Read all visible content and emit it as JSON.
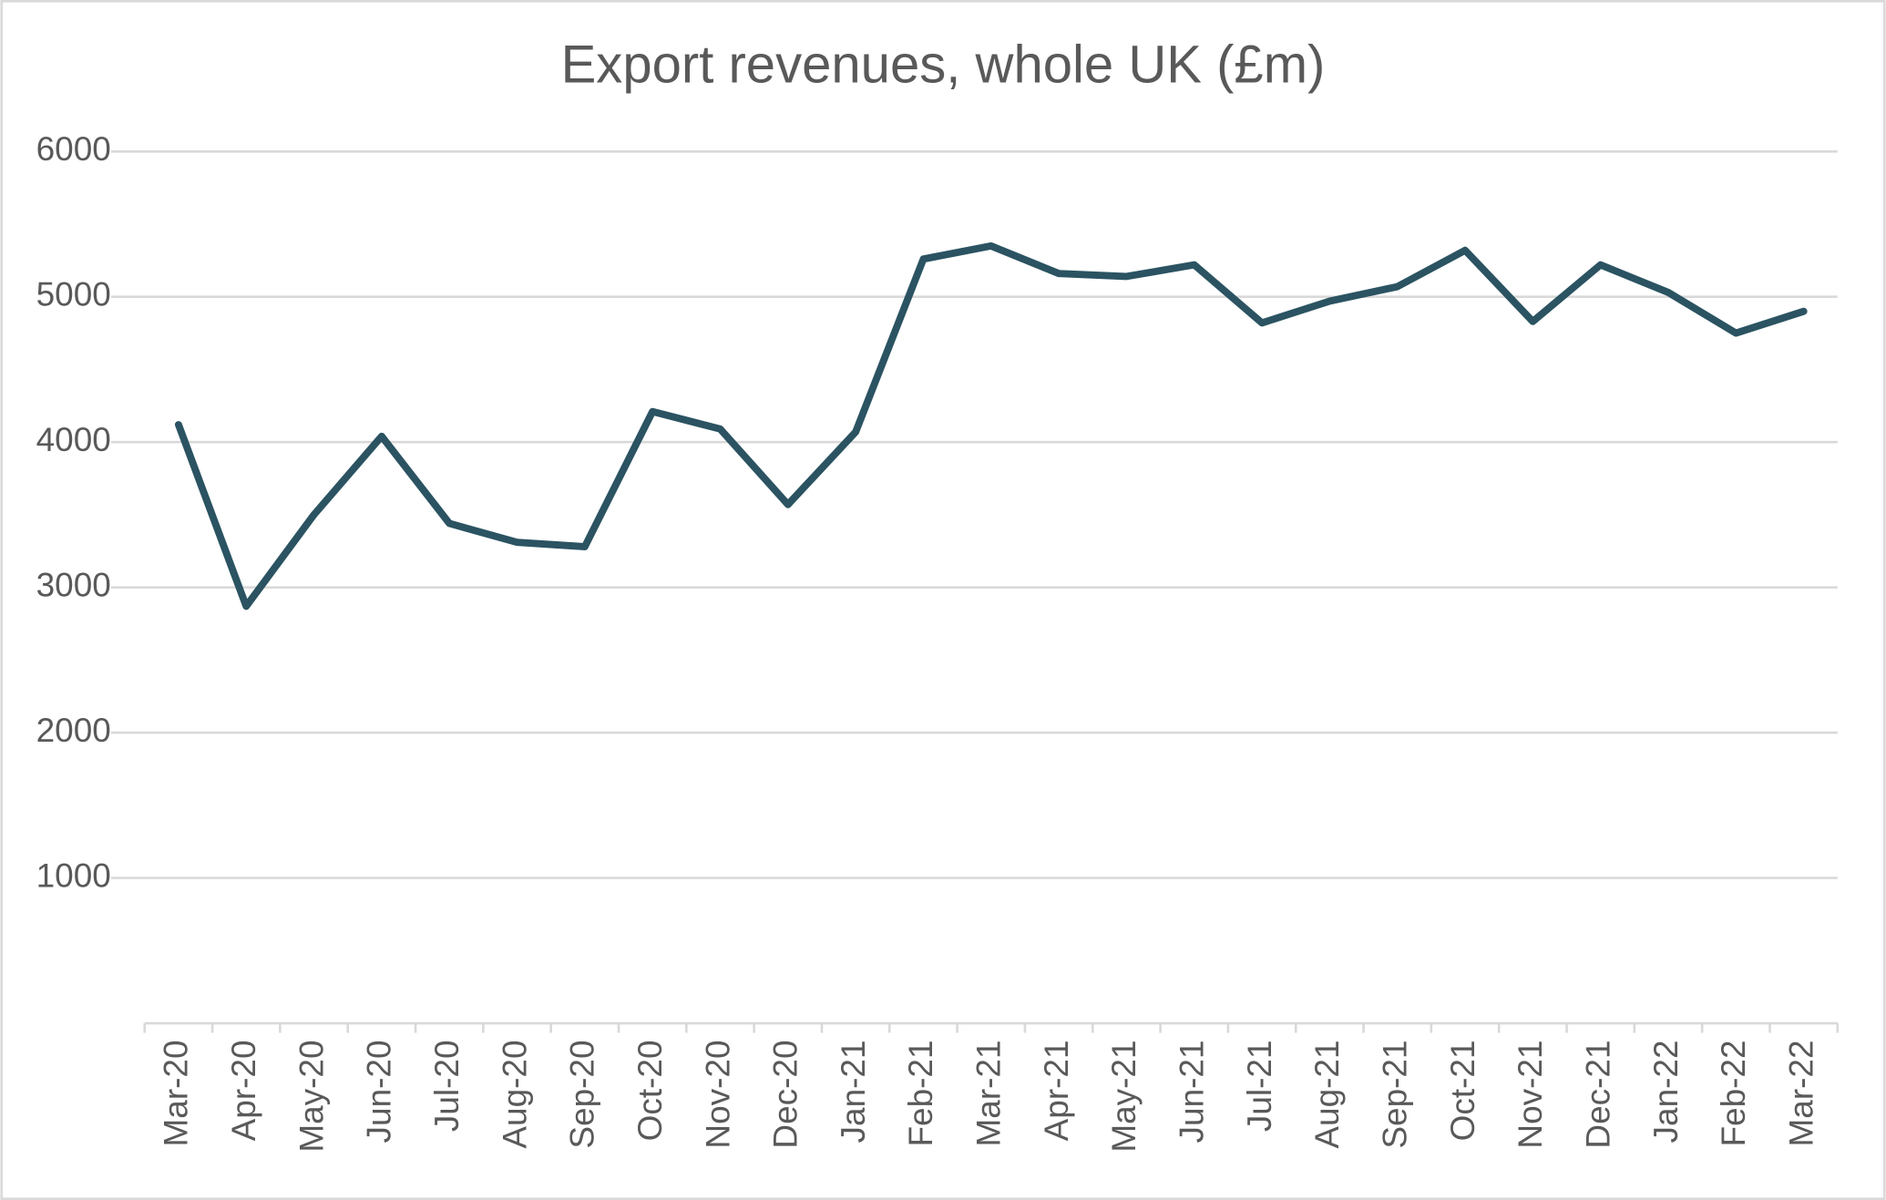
{
  "chart_data": {
    "type": "line",
    "title": "Export revenues, whole UK (£m)",
    "categories": [
      "Mar-20",
      "Apr-20",
      "May-20",
      "Jun-20",
      "Jul-20",
      "Aug-20",
      "Sep-20",
      "Oct-20",
      "Nov-20",
      "Dec-20",
      "Jan-21",
      "Feb-21",
      "Mar-21",
      "Apr-21",
      "May-21",
      "Jun-21",
      "Jul-21",
      "Aug-21",
      "Sep-21",
      "Oct-21",
      "Nov-21",
      "Dec-21",
      "Jan-22",
      "Feb-22",
      "Mar-22"
    ],
    "series": [
      {
        "color": "#2b5362",
        "values": [
          4120,
          2870,
          3500,
          4040,
          3440,
          3310,
          3280,
          4210,
          4090,
          3570,
          4070,
          5260,
          5350,
          5160,
          5140,
          5220,
          4820,
          4970,
          5070,
          5320,
          4830,
          5220,
          5030,
          4750,
          4900
        ]
      }
    ],
    "ylim": [
      0,
      6000
    ],
    "yticks": [
      1000,
      2000,
      3000,
      4000,
      5000,
      6000
    ],
    "grid": true
  }
}
